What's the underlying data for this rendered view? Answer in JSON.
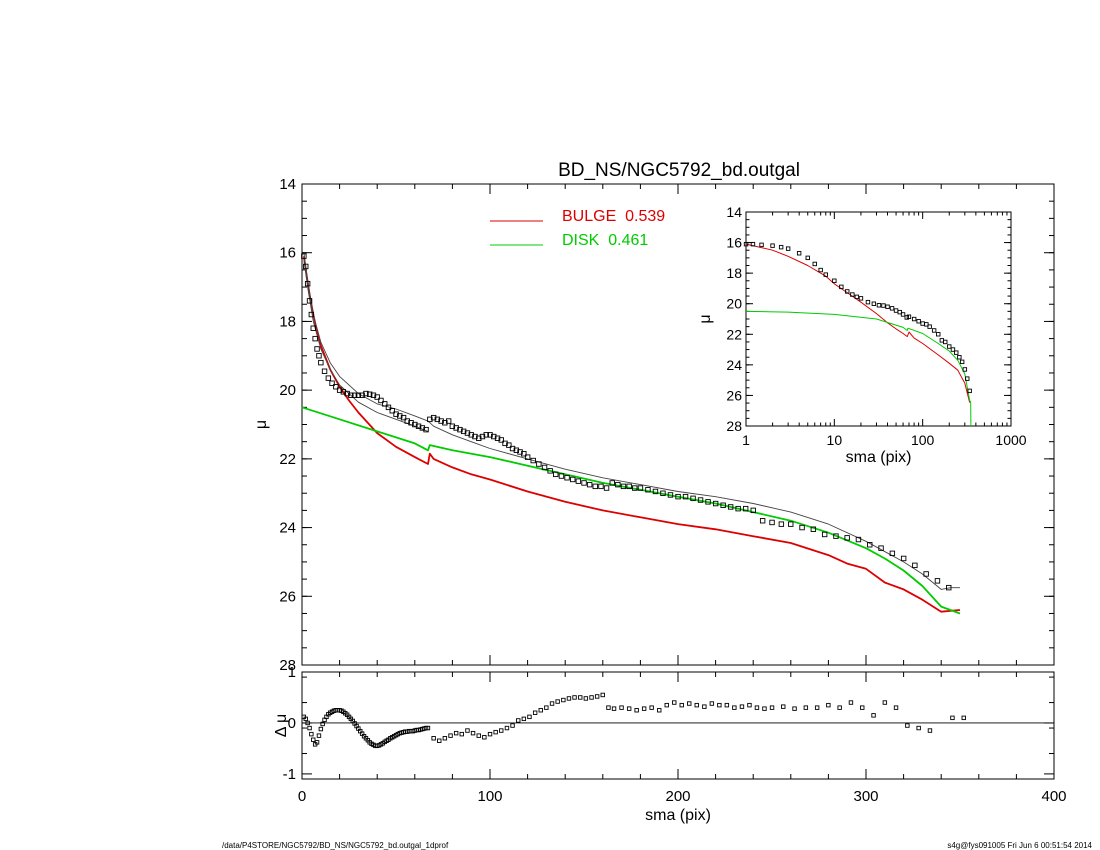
{
  "title": "BD_NS/NGC5792_bd.outgal",
  "footer_left": "/data/P4STORE/NGC5792/BD_NS/NGC5792_bd.outgal_1dprof",
  "footer_right": "s4g@fys091005  Fri Jun  6 00:51:54 2014",
  "colors": {
    "bulge": "#dd0000",
    "disk": "#00cc00",
    "data": "#000000",
    "envelope": "#444444"
  },
  "chart_data": [
    {
      "id": "main",
      "type": "line",
      "xlabel": "",
      "ylabel": "μ",
      "xlim": [
        0,
        400
      ],
      "ylim": [
        28,
        14
      ],
      "y_inverted": true,
      "xticks": [
        0,
        100,
        200,
        300,
        400
      ],
      "xtick_labels_shown": false,
      "yticks": [
        14,
        16,
        18,
        20,
        22,
        24,
        26,
        28
      ],
      "legend": [
        {
          "name": "BULGE",
          "value": "0.539",
          "color": "#dd0000"
        },
        {
          "name": "DISK",
          "value": "0.461",
          "color": "#00cc00"
        }
      ],
      "series": [
        {
          "name": "BULGE",
          "style": "line",
          "x": [
            1,
            2,
            4,
            6,
            8,
            10,
            15,
            20,
            25,
            30,
            40,
            50,
            60,
            67,
            68,
            70,
            80,
            90,
            100,
            120,
            140,
            160,
            180,
            200,
            220,
            240,
            260,
            280,
            290,
            300,
            310,
            320,
            330,
            340,
            350
          ],
          "y": [
            16.1,
            16.5,
            17.2,
            17.8,
            18.3,
            18.7,
            19.4,
            19.9,
            20.3,
            20.65,
            21.25,
            21.65,
            21.95,
            22.15,
            21.85,
            22.0,
            22.25,
            22.45,
            22.6,
            22.95,
            23.25,
            23.5,
            23.7,
            23.9,
            24.05,
            24.25,
            24.45,
            24.8,
            25.05,
            25.2,
            25.6,
            25.8,
            26.1,
            26.45,
            26.4
          ]
        },
        {
          "name": "DISK",
          "style": "line",
          "x": [
            0,
            20,
            40,
            60,
            67,
            68,
            80,
            100,
            120,
            140,
            160,
            180,
            200,
            220,
            240,
            260,
            280,
            300,
            310,
            320,
            330,
            340,
            350
          ],
          "y": [
            20.5,
            20.85,
            21.2,
            21.55,
            21.75,
            21.6,
            21.75,
            21.95,
            22.2,
            22.45,
            22.7,
            22.9,
            23.1,
            23.3,
            23.55,
            23.8,
            24.15,
            24.6,
            24.9,
            25.25,
            25.7,
            26.3,
            26.5
          ]
        },
        {
          "name": "Model upper envelope",
          "style": "thin-line",
          "x": [
            1,
            3,
            6,
            10,
            15,
            20,
            30,
            40,
            50,
            60,
            67,
            70,
            80,
            90,
            100,
            120,
            140,
            160,
            180,
            200,
            220,
            240,
            260,
            280,
            300,
            320,
            330,
            340,
            345,
            350
          ],
          "y": [
            16.0,
            16.8,
            17.8,
            18.6,
            19.2,
            19.6,
            20.1,
            20.4,
            20.55,
            20.75,
            20.9,
            21.05,
            21.3,
            21.5,
            21.7,
            22.0,
            22.3,
            22.55,
            22.75,
            22.95,
            23.1,
            23.3,
            23.55,
            23.9,
            24.4,
            25.0,
            25.35,
            25.8,
            25.75,
            25.75
          ]
        },
        {
          "name": "Model lower envelope",
          "style": "thin-line",
          "x": [
            1,
            3,
            6,
            10,
            15,
            20,
            30,
            40,
            50,
            60,
            67
          ],
          "y": [
            16.2,
            17.0,
            18.0,
            18.8,
            19.4,
            19.85,
            20.35,
            20.65,
            20.85,
            21.05,
            21.2
          ]
        },
        {
          "name": "Data",
          "style": "square-markers",
          "x": [
            1,
            2,
            3,
            4,
            5,
            6,
            7,
            8,
            9,
            10,
            12,
            14,
            16,
            18,
            20,
            22,
            24,
            26,
            28,
            30,
            32,
            34,
            36,
            38,
            40,
            42,
            44,
            46,
            48,
            50,
            52,
            54,
            56,
            58,
            60,
            62,
            64,
            66,
            68,
            70,
            72,
            74,
            76,
            78,
            80,
            82,
            84,
            86,
            88,
            90,
            92,
            94,
            96,
            98,
            100,
            102,
            104,
            106,
            108,
            110,
            112,
            114,
            116,
            118,
            120,
            123,
            126,
            129,
            132,
            135,
            138,
            141,
            144,
            147,
            150,
            153,
            156,
            159,
            162,
            165,
            168,
            171,
            174,
            177,
            180,
            184,
            188,
            192,
            196,
            200,
            204,
            208,
            212,
            216,
            220,
            224,
            228,
            232,
            236,
            240,
            245,
            250,
            255,
            260,
            266,
            272,
            278,
            284,
            290,
            296,
            302,
            308,
            314,
            320,
            326,
            332,
            338,
            344
          ],
          "y": [
            16.1,
            16.4,
            16.9,
            17.4,
            17.8,
            18.2,
            18.5,
            18.8,
            19.0,
            19.2,
            19.45,
            19.65,
            19.8,
            19.9,
            20.0,
            20.05,
            20.1,
            20.15,
            20.15,
            20.15,
            20.15,
            20.1,
            20.12,
            20.15,
            20.2,
            20.3,
            20.4,
            20.5,
            20.6,
            20.7,
            20.75,
            20.8,
            20.9,
            20.95,
            21.0,
            21.05,
            21.1,
            21.15,
            20.85,
            20.8,
            20.85,
            20.9,
            20.95,
            20.9,
            21.05,
            21.1,
            21.15,
            21.2,
            21.25,
            21.3,
            21.35,
            21.4,
            21.35,
            21.3,
            21.3,
            21.35,
            21.4,
            21.45,
            21.55,
            21.6,
            21.7,
            21.75,
            21.8,
            21.85,
            21.95,
            22.05,
            22.15,
            22.25,
            22.35,
            22.45,
            22.5,
            22.55,
            22.6,
            22.65,
            22.7,
            22.75,
            22.8,
            22.8,
            22.85,
            22.7,
            22.75,
            22.8,
            22.8,
            22.85,
            22.85,
            22.9,
            22.95,
            23.0,
            23.05,
            23.1,
            23.1,
            23.15,
            23.2,
            23.25,
            23.3,
            23.35,
            23.4,
            23.45,
            23.45,
            23.5,
            23.8,
            23.85,
            23.9,
            23.9,
            24.0,
            24.05,
            24.2,
            24.25,
            24.3,
            24.35,
            24.5,
            24.6,
            24.75,
            24.9,
            25.1,
            25.35,
            25.55,
            25.75
          ]
        }
      ]
    },
    {
      "id": "inset",
      "type": "line",
      "xlabel": "sma (pix)",
      "ylabel": "μ",
      "xscale": "log",
      "xlim": [
        1,
        1000
      ],
      "ylim": [
        28,
        14
      ],
      "y_inverted": true,
      "xticks": [
        1,
        10,
        100,
        1000
      ],
      "yticks": [
        14,
        16,
        18,
        20,
        22,
        24,
        26,
        28
      ],
      "series": [
        {
          "name": "BULGE",
          "style": "line",
          "x": [
            1,
            2,
            3,
            5,
            8,
            10,
            15,
            20,
            30,
            40,
            50,
            60,
            67,
            70,
            80,
            100,
            150,
            200,
            250,
            300,
            340,
            350
          ],
          "y": [
            16.1,
            16.5,
            16.9,
            17.5,
            18.2,
            18.7,
            19.4,
            19.9,
            20.65,
            21.25,
            21.65,
            21.95,
            22.15,
            21.85,
            22.25,
            22.6,
            23.35,
            23.9,
            24.35,
            25.2,
            26.45,
            26.4
          ]
        },
        {
          "name": "DISK",
          "style": "line",
          "x": [
            1,
            3,
            10,
            30,
            60,
            67,
            68,
            100,
            150,
            200,
            250,
            300,
            340,
            350,
            352
          ],
          "y": [
            20.5,
            20.55,
            20.7,
            21.0,
            21.55,
            21.75,
            21.6,
            21.95,
            22.6,
            23.1,
            23.7,
            24.6,
            26.3,
            26.5,
            28
          ]
        },
        {
          "name": "Data",
          "style": "square-markers",
          "x": [
            1,
            1.2,
            1.5,
            2,
            2.5,
            3,
            4,
            5,
            6,
            7,
            8,
            10,
            12,
            14,
            16,
            18,
            20,
            24,
            28,
            32,
            36,
            40,
            45,
            50,
            55,
            60,
            66,
            70,
            80,
            90,
            100,
            110,
            120,
            135,
            150,
            165,
            180,
            200,
            220,
            240,
            260,
            280,
            300,
            320,
            340
          ],
          "y": [
            16.1,
            16.1,
            16.15,
            16.2,
            16.3,
            16.4,
            16.7,
            17.0,
            17.4,
            17.8,
            18.1,
            18.5,
            18.9,
            19.2,
            19.4,
            19.55,
            19.65,
            19.9,
            20.0,
            20.1,
            20.12,
            20.2,
            20.3,
            20.45,
            20.55,
            20.7,
            20.9,
            20.85,
            21.0,
            21.15,
            21.3,
            21.35,
            21.5,
            21.75,
            22.0,
            22.4,
            22.5,
            22.8,
            23.0,
            23.2,
            23.5,
            23.8,
            24.3,
            24.9,
            25.7
          ]
        }
      ]
    },
    {
      "id": "residuals",
      "type": "scatter",
      "xlabel": "sma (pix)",
      "ylabel": "Δ μ",
      "xlim": [
        0,
        400
      ],
      "ylim": [
        -1.1,
        1.0
      ],
      "xticks": [
        0,
        100,
        200,
        300,
        400
      ],
      "yticks": [
        -1,
        0,
        1
      ],
      "series": [
        {
          "name": "Residual",
          "style": "square-markers",
          "x": [
            1,
            2,
            3,
            4,
            5,
            6,
            7,
            8,
            9,
            10,
            11,
            12,
            13,
            14,
            15,
            16,
            17,
            18,
            19,
            20,
            21,
            22,
            23,
            24,
            25,
            26,
            27,
            28,
            29,
            30,
            31,
            32,
            33,
            34,
            35,
            36,
            37,
            38,
            39,
            40,
            41,
            42,
            43,
            44,
            45,
            46,
            47,
            48,
            49,
            50,
            51,
            52,
            53,
            54,
            55,
            56,
            57,
            58,
            59,
            60,
            61,
            62,
            63,
            64,
            65,
            66,
            67,
            70,
            73,
            76,
            79,
            82,
            85,
            88,
            91,
            94,
            97,
            100,
            103,
            106,
            109,
            112,
            115,
            118,
            121,
            124,
            127,
            130,
            133,
            136,
            139,
            142,
            145,
            148,
            151,
            154,
            157,
            160,
            163,
            166,
            170,
            174,
            178,
            182,
            186,
            190,
            194,
            198,
            202,
            206,
            210,
            214,
            218,
            222,
            226,
            230,
            234,
            238,
            242,
            246,
            250,
            256,
            262,
            268,
            274,
            280,
            286,
            292,
            298,
            304,
            310,
            316,
            322,
            328,
            334,
            346,
            352
          ],
          "y": [
            0.12,
            0.08,
            0.0,
            -0.1,
            -0.22,
            -0.33,
            -0.42,
            -0.38,
            -0.25,
            -0.12,
            -0.02,
            0.06,
            0.12,
            0.17,
            0.2,
            0.22,
            0.24,
            0.25,
            0.25,
            0.25,
            0.24,
            0.22,
            0.19,
            0.16,
            0.12,
            0.08,
            0.04,
            -0.01,
            -0.06,
            -0.11,
            -0.16,
            -0.21,
            -0.26,
            -0.3,
            -0.34,
            -0.38,
            -0.41,
            -0.43,
            -0.45,
            -0.45,
            -0.44,
            -0.42,
            -0.4,
            -0.37,
            -0.35,
            -0.33,
            -0.3,
            -0.28,
            -0.26,
            -0.24,
            -0.22,
            -0.2,
            -0.19,
            -0.18,
            -0.17,
            -0.17,
            -0.16,
            -0.16,
            -0.16,
            -0.15,
            -0.14,
            -0.14,
            -0.13,
            -0.12,
            -0.11,
            -0.1,
            -0.1,
            -0.3,
            -0.35,
            -0.3,
            -0.25,
            -0.2,
            -0.22,
            -0.15,
            -0.2,
            -0.25,
            -0.28,
            -0.22,
            -0.18,
            -0.15,
            -0.1,
            -0.05,
            0.05,
            0.08,
            0.12,
            0.2,
            0.25,
            0.3,
            0.38,
            0.42,
            0.45,
            0.48,
            0.5,
            0.5,
            0.48,
            0.5,
            0.52,
            0.55,
            0.3,
            0.28,
            0.3,
            0.28,
            0.25,
            0.28,
            0.3,
            0.25,
            0.35,
            0.4,
            0.35,
            0.38,
            0.35,
            0.32,
            0.38,
            0.35,
            0.35,
            0.3,
            0.32,
            0.35,
            0.3,
            0.28,
            0.3,
            0.32,
            0.28,
            0.3,
            0.3,
            0.35,
            0.3,
            0.4,
            0.3,
            0.15,
            0.4,
            0.3,
            -0.05,
            -0.1,
            -0.15,
            0.1,
            0.1
          ]
        }
      ]
    }
  ]
}
